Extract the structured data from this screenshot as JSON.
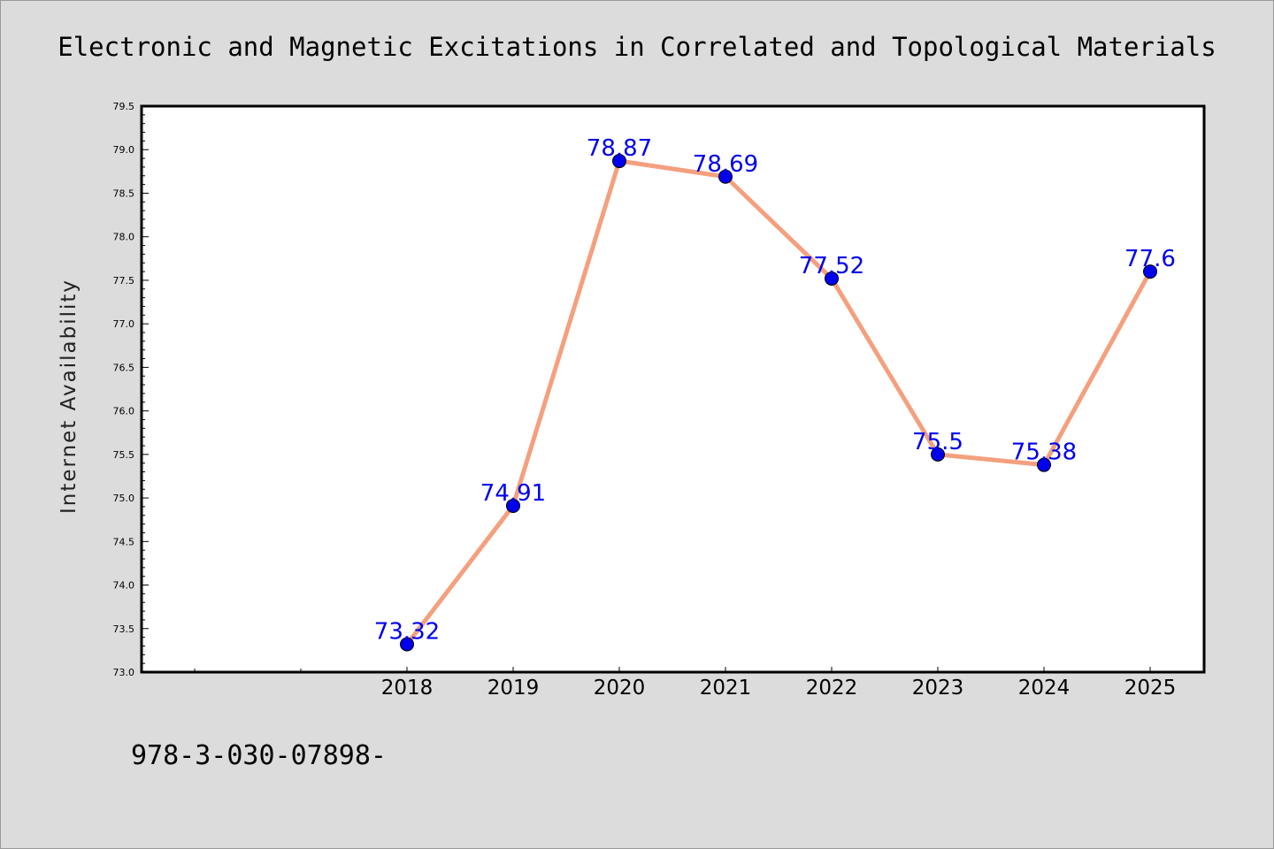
{
  "chart_data": {
    "type": "line",
    "title": "Electronic and Magnetic Excitations in Correlated and Topological Materials",
    "xlabel": "",
    "ylabel": "Internet Availability",
    "x": [
      "2018",
      "2019",
      "2020",
      "2021",
      "2022",
      "2023",
      "2024",
      "2025"
    ],
    "series": [
      {
        "values": [
          73.32,
          74.91,
          78.87,
          78.69,
          77.52,
          75.5,
          75.38,
          77.6
        ],
        "labels": [
          "73.32",
          "74.91",
          "78.87",
          "78.69",
          "77.52",
          "75.5",
          "75.38",
          "77.6"
        ]
      }
    ],
    "ylim": [
      73.0,
      79.5
    ],
    "yticks": [
      "73.0",
      "73.5",
      "74.0",
      "74.5",
      "75.0",
      "75.5",
      "76.0",
      "76.5",
      "77.0",
      "77.5",
      "78.0",
      "78.5",
      "79.0",
      "79.5"
    ],
    "grid": false,
    "legend": "none",
    "colors": {
      "line": "#f4a07e",
      "marker": "#0000ee",
      "marker_edge": "#000000",
      "data_label": "#0000ee",
      "plot_background": "#ffffff",
      "figure_background": "#dcdcdc"
    }
  },
  "footer": {
    "isbn": "978-3-030-07898-"
  }
}
